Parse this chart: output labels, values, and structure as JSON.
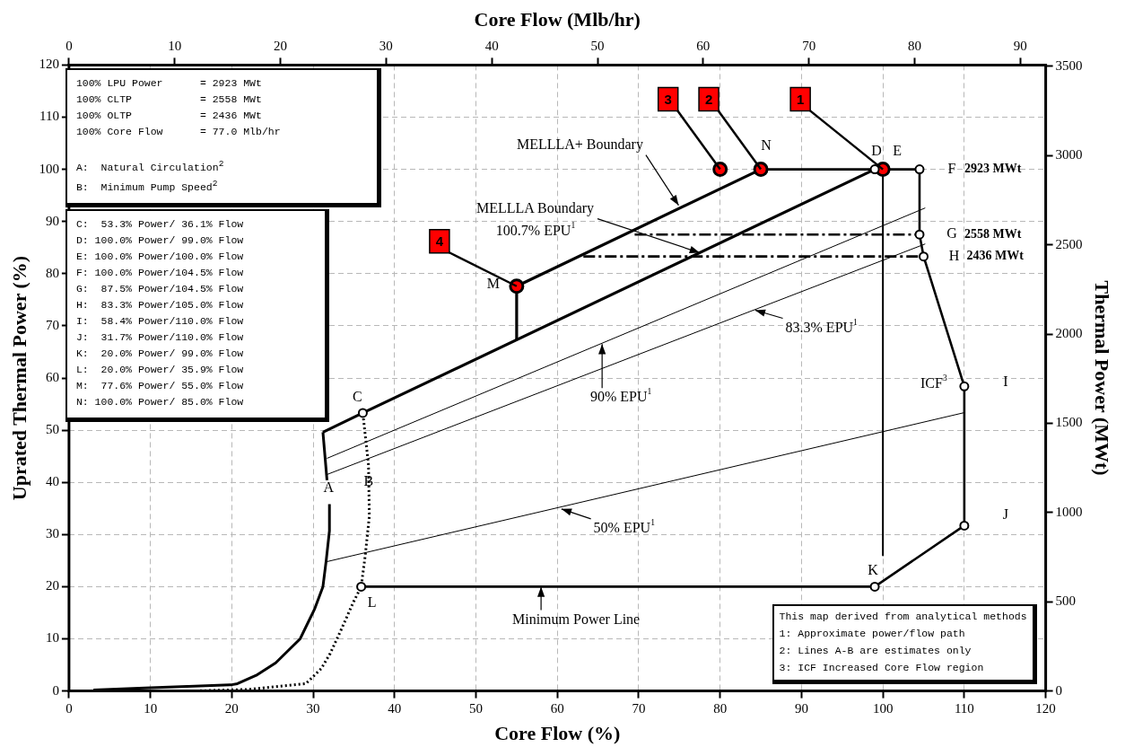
{
  "chart_data": {
    "type": "line",
    "xlabel": "Core Flow (%)",
    "ylabel": "Uprated Thermal Power (%)",
    "x2label": "Core Flow (Mlb/hr)",
    "y2label": "Thermal Power (MWt)",
    "xlim": [
      0,
      120
    ],
    "xticks": [
      0,
      10,
      20,
      30,
      40,
      50,
      60,
      70,
      80,
      90,
      100,
      110,
      120
    ],
    "ylim": [
      0,
      120
    ],
    "yticks": [
      0,
      10,
      20,
      30,
      40,
      50,
      60,
      70,
      80,
      90,
      100,
      110,
      120
    ],
    "x2lim": [
      0,
      92.4
    ],
    "x2ticks": [
      0,
      10,
      20,
      30,
      40,
      50,
      60,
      70,
      80,
      90
    ],
    "y2lim": [
      0,
      3507.6
    ],
    "y2ticks": [
      0,
      500,
      1000,
      1500,
      2000,
      2500,
      3000,
      3500
    ],
    "grid": true,
    "legend": false,
    "series": [
      {
        "type": "line",
        "color": "#000000",
        "marker": "none",
        "line_style": "solid",
        "x": [
          3,
          10,
          20,
          20.7,
          23,
          25.4,
          28.4,
          30.2,
          31.2,
          31.6,
          32,
          32,
          31.9,
          31.7,
          31.2
        ],
        "values": [
          0.2,
          0.6,
          1.2,
          1.4,
          3,
          5.4,
          10,
          15.8,
          20,
          25,
          30.7,
          35.8,
          null,
          40.4,
          49.6
        ]
      },
      {
        "type": "line",
        "color": "#000000",
        "marker": "none",
        "line_style": "dotted",
        "x": [
          15,
          22,
          29.1,
          31,
          32.1,
          33.6,
          34.9,
          35.9,
          36.4,
          36.9,
          36.8,
          36.1
        ],
        "values": [
          0,
          0.3,
          1.4,
          4.3,
          7.2,
          12.3,
          16.9,
          20,
          26,
          33.5,
          43.3,
          53.3
        ]
      },
      {
        "type": "line",
        "color": "#000000",
        "marker": "none",
        "line_style": "solid",
        "x": [
          31.2,
          36.1,
          99
        ],
        "values": [
          49.6,
          53.3,
          100
        ]
      },
      {
        "type": "line",
        "color": "#000000",
        "marker": "none",
        "line_style": "solid",
        "x": [
          55,
          55,
          85
        ],
        "values": [
          67.3,
          77.6,
          100
        ]
      },
      {
        "type": "line",
        "color": "#000000",
        "marker": "none",
        "line_style": "solid",
        "x": [
          85,
          104.5,
          104.5,
          105,
          110,
          110,
          99,
          35.9
        ],
        "values": [
          100,
          100,
          87.5,
          83.3,
          58.4,
          31.7,
          20,
          20
        ]
      },
      {
        "type": "line",
        "color": "#000000",
        "marker": "none",
        "line_style": "solid",
        "x": [
          100,
          100
        ],
        "values": [
          100,
          26
        ]
      },
      {
        "type": "line",
        "color": "#000000",
        "marker": "none",
        "line_style": "solid",
        "x": [
          31.7,
          105.2
        ],
        "values": [
          44.6,
          92.6
        ]
      },
      {
        "type": "line",
        "color": "#000000",
        "marker": "none",
        "line_style": "solid",
        "x": [
          31.7,
          105.2
        ],
        "values": [
          41.5,
          85.7
        ]
      },
      {
        "type": "line",
        "color": "#000000",
        "marker": "none",
        "line_style": "solid",
        "x": [
          31.7,
          110.1
        ],
        "values": [
          24.8,
          53.4
        ]
      },
      {
        "type": "line",
        "color": "#000000",
        "marker": "none",
        "line_style": "dashed",
        "x": [
          69.5,
          104.5
        ],
        "values": [
          87.5,
          87.5
        ]
      },
      {
        "type": "line",
        "color": "#000000",
        "marker": "none",
        "line_style": "dashed",
        "x": [
          63.2,
          105
        ],
        "values": [
          83.3,
          83.3
        ]
      },
      {
        "type": "scatter",
        "color": "#000000",
        "marker": "circle",
        "x": [
          36.1,
          99,
          104.5,
          104.5,
          105,
          110,
          110,
          99,
          35.9
        ],
        "values": [
          53.3,
          100,
          100,
          87.5,
          83.3,
          58.4,
          31.7,
          20,
          20
        ]
      },
      {
        "type": "scatter",
        "color": "#ff0000",
        "marker": "circle",
        "x": [
          80,
          85,
          100,
          55
        ],
        "values": [
          100,
          100,
          100,
          77.6
        ]
      }
    ],
    "annotations": [
      "100% LPU Power      = 2923 MWt\n100% CLTP           = 2558 MWt\n100% OLTP           = 2436 MWt\n100% Core Flow      = 77.0 Mlb/hr\n\nA:  Natural Circulation$^{2}$\nB:  Minimum Pump Speed$^{2}$",
      "C:  53.3% Power/ 36.1% Flow\nD: 100.0% Power/ 99.0% Flow\nE: 100.0% Power/100.0% Flow\nF: 100.0% Power/104.5% Flow\nG:  87.5% Power/104.5% Flow\nH:  83.3% Power/105.0% Flow\nI:  58.4% Power/110.0% Flow\nJ:  31.7% Power/110.0% Flow\nK:  20.0% Power/ 99.0% Flow\nL:  20.0% Power/ 35.9% Flow\nM:  77.6% Power/ 55.0% Flow\nN: 100.0% Power/ 85.0% Flow",
      "This map derived from analytical methods\n1: Approximate power/flow path\n2: Lines A-B are estimates only\n3: ICF Increased Core Flow region",
      {
        "text": "A",
        "x": 32,
        "y": 35.8
      },
      {
        "text": "B",
        "x": 36.8,
        "y": 40
      },
      {
        "text": "C",
        "x": 36.1,
        "y": 53.3
      },
      {
        "text": "D",
        "x": 99,
        "y": 100
      },
      {
        "text": "E",
        "x": 100,
        "y": 100
      },
      {
        "text": "F",
        "x": 104.5,
        "y": 100
      },
      "2923 MWt",
      {
        "text": "G",
        "x": 104.5,
        "y": 87.5
      },
      "2558 MWt",
      {
        "text": "H",
        "x": 105,
        "y": 83.3
      },
      "2436 MWt",
      {
        "text": "I",
        "x": 110,
        "y": 58.4
      },
      {
        "text": "ICF$^{3}$",
        "x": 110,
        "y": 58.4
      },
      {
        "text": "J",
        "x": 110,
        "y": 31.7
      },
      {
        "text": "K",
        "x": 99,
        "y": 20
      },
      {
        "text": "L",
        "x": 35.9,
        "y": 20
      },
      {
        "text": "M",
        "x": 55,
        "y": 77.6
      },
      {
        "text": "N",
        "x": 85,
        "y": 100
      },
      {
        "text": "1",
        "x": 100,
        "y": 100
      },
      {
        "text": "2",
        "x": 85,
        "y": 100
      },
      {
        "text": "3",
        "x": 80,
        "y": 100
      },
      {
        "text": "4",
        "x": 55,
        "y": 77.6
      },
      {
        "text": "MELLLA+ Boundary",
        "x": 74.9,
        "y": 93.1
      },
      {
        "text": "MELLLA Boundary",
        "x": 77.5,
        "y": 84
      },
      "100.7% EPU$^{1}$",
      {
        "text": "90% EPU$^{1}$",
        "x": 65.5,
        "y": 66.5
      },
      {
        "text": "83.3% EPU$^{1}$",
        "x": 84.3,
        "y": 73
      },
      {
        "text": "50% EPU$^{1}$",
        "x": 60.5,
        "y": 34.9
      },
      {
        "text": "Minimum Power Line",
        "x": 58,
        "y": 20
      }
    ]
  }
}
